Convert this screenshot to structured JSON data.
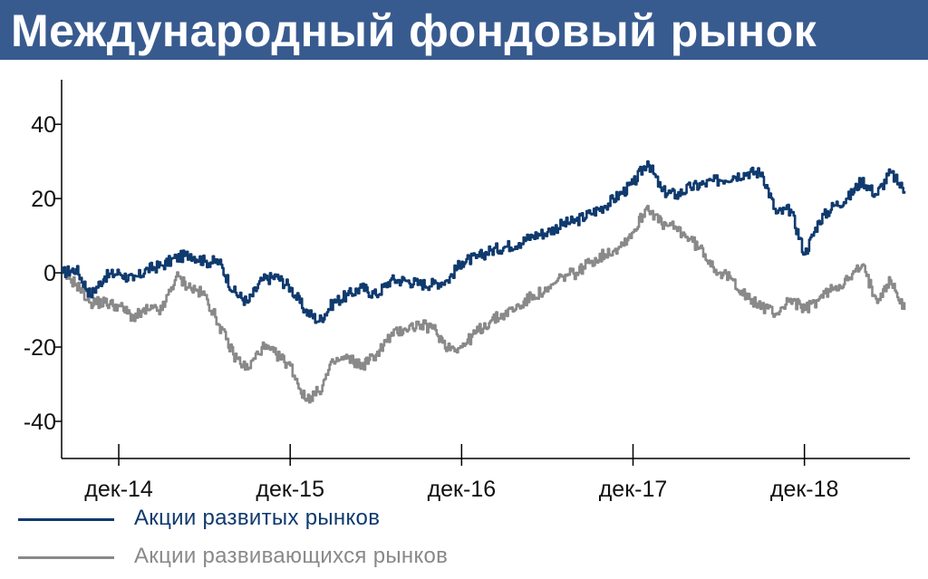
{
  "header": {
    "title": "Международный фондовый рынок",
    "bg_color": "#385b8f"
  },
  "chart_data": {
    "type": "line",
    "title": "Международный фондовый рынок",
    "xlabel": "",
    "ylabel": "",
    "x_range": [
      "2014-08",
      "2019-07"
    ],
    "ylim": [
      -50,
      52
    ],
    "y_ticks": [
      "40",
      "20",
      "0",
      "-20",
      "-40"
    ],
    "y_tick_values": [
      40,
      20,
      0,
      -20,
      -40
    ],
    "x_ticks": [
      "дек-14",
      "дек-15",
      "дек-16",
      "дек-17",
      "дек-18"
    ],
    "x_tick_dates": [
      "2014-12",
      "2015-12",
      "2016-12",
      "2017-12",
      "2018-12"
    ],
    "grid": false,
    "legend_position": "bottom-left",
    "series": [
      {
        "name": "Акции развитых рынков",
        "color": "#0f3a6e",
        "points": [
          [
            "2014-08",
            0
          ],
          [
            "2014-09",
            1
          ],
          [
            "2014-10",
            -6
          ],
          [
            "2014-11",
            -1
          ],
          [
            "2014-12",
            0
          ],
          [
            "2015-01",
            -2
          ],
          [
            "2015-02",
            1
          ],
          [
            "2015-03",
            2
          ],
          [
            "2015-04",
            4
          ],
          [
            "2015-05",
            5
          ],
          [
            "2015-06",
            3
          ],
          [
            "2015-07",
            3
          ],
          [
            "2015-08",
            -5
          ],
          [
            "2015-09",
            -8
          ],
          [
            "2015-10",
            -2
          ],
          [
            "2015-11",
            -1
          ],
          [
            "2015-12",
            -4
          ],
          [
            "2016-01",
            -10
          ],
          [
            "2016-02",
            -13
          ],
          [
            "2016-03",
            -8
          ],
          [
            "2016-04",
            -6
          ],
          [
            "2016-05",
            -4
          ],
          [
            "2016-06",
            -6
          ],
          [
            "2016-07",
            -2
          ],
          [
            "2016-08",
            -2
          ],
          [
            "2016-09",
            -3
          ],
          [
            "2016-10",
            -3
          ],
          [
            "2016-11",
            -2
          ],
          [
            "2016-12",
            3
          ],
          [
            "2017-01",
            4
          ],
          [
            "2017-02",
            6
          ],
          [
            "2017-03",
            7
          ],
          [
            "2017-04",
            8
          ],
          [
            "2017-05",
            10
          ],
          [
            "2017-06",
            11
          ],
          [
            "2017-07",
            13
          ],
          [
            "2017-08",
            14
          ],
          [
            "2017-09",
            16
          ],
          [
            "2017-10",
            18
          ],
          [
            "2017-11",
            21
          ],
          [
            "2017-12",
            24
          ],
          [
            "2018-01",
            30
          ],
          [
            "2018-02",
            22
          ],
          [
            "2018-03",
            21
          ],
          [
            "2018-04",
            23
          ],
          [
            "2018-05",
            24
          ],
          [
            "2018-06",
            25
          ],
          [
            "2018-07",
            26
          ],
          [
            "2018-08",
            27
          ],
          [
            "2018-09",
            27
          ],
          [
            "2018-10",
            16
          ],
          [
            "2018-11",
            17
          ],
          [
            "2018-12",
            5
          ],
          [
            "2019-01",
            14
          ],
          [
            "2019-02",
            18
          ],
          [
            "2019-03",
            20
          ],
          [
            "2019-04",
            25
          ],
          [
            "2019-05",
            21
          ],
          [
            "2019-06",
            27
          ],
          [
            "2019-07",
            22
          ]
        ]
      },
      {
        "name": "Акции развивающихся рынков",
        "color": "#898989",
        "points": [
          [
            "2014-08",
            0
          ],
          [
            "2014-09",
            -3
          ],
          [
            "2014-10",
            -8
          ],
          [
            "2014-11",
            -8
          ],
          [
            "2014-12",
            -9
          ],
          [
            "2015-01",
            -12
          ],
          [
            "2015-02",
            -10
          ],
          [
            "2015-03",
            -10
          ],
          [
            "2015-04",
            -1
          ],
          [
            "2015-05",
            -4
          ],
          [
            "2015-06",
            -6
          ],
          [
            "2015-07",
            -14
          ],
          [
            "2015-08",
            -22
          ],
          [
            "2015-09",
            -26
          ],
          [
            "2015-10",
            -20
          ],
          [
            "2015-11",
            -22
          ],
          [
            "2015-12",
            -25
          ],
          [
            "2016-01",
            -34
          ],
          [
            "2016-02",
            -32
          ],
          [
            "2016-03",
            -24
          ],
          [
            "2016-04",
            -23
          ],
          [
            "2016-05",
            -25
          ],
          [
            "2016-06",
            -22
          ],
          [
            "2016-07",
            -17
          ],
          [
            "2016-08",
            -15
          ],
          [
            "2016-09",
            -14
          ],
          [
            "2016-10",
            -15
          ],
          [
            "2016-11",
            -20
          ],
          [
            "2016-12",
            -20
          ],
          [
            "2017-01",
            -16
          ],
          [
            "2017-02",
            -13
          ],
          [
            "2017-03",
            -11
          ],
          [
            "2017-04",
            -9
          ],
          [
            "2017-05",
            -6
          ],
          [
            "2017-06",
            -5
          ],
          [
            "2017-07",
            -1
          ],
          [
            "2017-08",
            0
          ],
          [
            "2017-09",
            3
          ],
          [
            "2017-10",
            5
          ],
          [
            "2017-11",
            7
          ],
          [
            "2017-12",
            11
          ],
          [
            "2018-01",
            18
          ],
          [
            "2018-02",
            13
          ],
          [
            "2018-03",
            12
          ],
          [
            "2018-04",
            9
          ],
          [
            "2018-05",
            5
          ],
          [
            "2018-06",
            0
          ],
          [
            "2018-07",
            -2
          ],
          [
            "2018-08",
            -7
          ],
          [
            "2018-09",
            -9
          ],
          [
            "2018-10",
            -11
          ],
          [
            "2018-11",
            -7
          ],
          [
            "2018-12",
            -10
          ],
          [
            "2019-01",
            -7
          ],
          [
            "2019-02",
            -4
          ],
          [
            "2019-03",
            -2
          ],
          [
            "2019-04",
            2
          ],
          [
            "2019-05",
            -7
          ],
          [
            "2019-06",
            -2
          ],
          [
            "2019-07",
            -10
          ]
        ]
      }
    ]
  }
}
